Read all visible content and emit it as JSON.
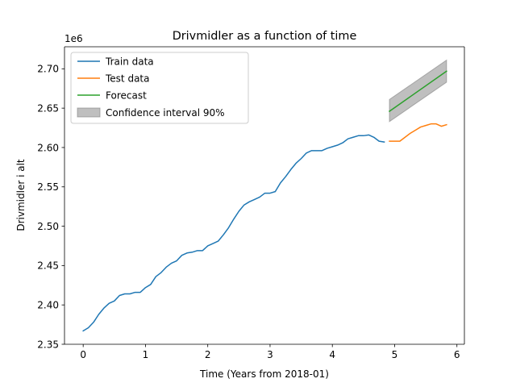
{
  "chart_data": {
    "type": "line",
    "title": "Drivmidler as a function of time",
    "xlabel": "Time (Years from 2018-01)",
    "ylabel": "Drivmidler i alt",
    "y_offset_label": "1e6",
    "xlim": [
      -0.3,
      6.12
    ],
    "ylim": [
      2.35,
      2.728
    ],
    "xticks": [
      0,
      1,
      2,
      3,
      4,
      5,
      6
    ],
    "yticks": [
      2.35,
      2.4,
      2.45,
      2.5,
      2.55,
      2.6,
      2.65,
      2.7
    ],
    "ytick_labels": [
      "2.35",
      "2.40",
      "2.45",
      "2.50",
      "2.55",
      "2.60",
      "2.65",
      "2.70"
    ],
    "grid": false,
    "legend_position": "top-left",
    "series": [
      {
        "name": "Train data",
        "color": "#1f77b4",
        "x": [
          0,
          0.0833,
          0.1667,
          0.25,
          0.3333,
          0.4167,
          0.5,
          0.5833,
          0.6667,
          0.75,
          0.8333,
          0.9167,
          1,
          1.0833,
          1.1667,
          1.25,
          1.3333,
          1.4167,
          1.5,
          1.5833,
          1.6667,
          1.75,
          1.8333,
          1.9167,
          2,
          2.0833,
          2.1667,
          2.25,
          2.3333,
          2.4167,
          2.5,
          2.5833,
          2.6667,
          2.75,
          2.8333,
          2.9167,
          3,
          3.0833,
          3.1667,
          3.25,
          3.3333,
          3.4167,
          3.5,
          3.5833,
          3.6667,
          3.75,
          3.8333,
          3.9167,
          4,
          4.0833,
          4.1667,
          4.25,
          4.3333,
          4.4167,
          4.5,
          4.5833,
          4.6667,
          4.75,
          4.8333
        ],
        "y": [
          2.367,
          2.371,
          2.378,
          2.388,
          2.396,
          2.402,
          2.405,
          2.412,
          2.414,
          2.414,
          2.416,
          2.416,
          2.422,
          2.426,
          2.436,
          2.441,
          2.448,
          2.453,
          2.456,
          2.463,
          2.466,
          2.467,
          2.469,
          2.469,
          2.475,
          2.478,
          2.481,
          2.489,
          2.498,
          2.509,
          2.519,
          2.527,
          2.531,
          2.534,
          2.537,
          2.542,
          2.542,
          2.544,
          2.555,
          2.563,
          2.572,
          2.58,
          2.586,
          2.593,
          2.596,
          2.596,
          2.596,
          2.599,
          2.601,
          2.603,
          2.606,
          2.611,
          2.613,
          2.615,
          2.615,
          2.616,
          2.613,
          2.608,
          2.607
        ]
      },
      {
        "name": "Test data",
        "color": "#ff7f0e",
        "x": [
          4.9167,
          5,
          5.0833,
          5.1667,
          5.25,
          5.3333,
          5.4167,
          5.5,
          5.5833,
          5.6667,
          5.75,
          5.8333
        ],
        "y": [
          2.608,
          2.608,
          2.608,
          2.613,
          2.618,
          2.622,
          2.626,
          2.628,
          2.63,
          2.63,
          2.627,
          2.629
        ]
      },
      {
        "name": "Forecast",
        "color": "#2ca02c",
        "x": [
          4.9167,
          5.8333
        ],
        "y": [
          2.646,
          2.697
        ]
      }
    ],
    "confidence_band": {
      "name": "Confidence interval 90%",
      "color": "#808080",
      "x": [
        4.9167,
        5.8333
      ],
      "lower": [
        2.633,
        2.683
      ],
      "upper": [
        2.661,
        2.711
      ]
    }
  }
}
